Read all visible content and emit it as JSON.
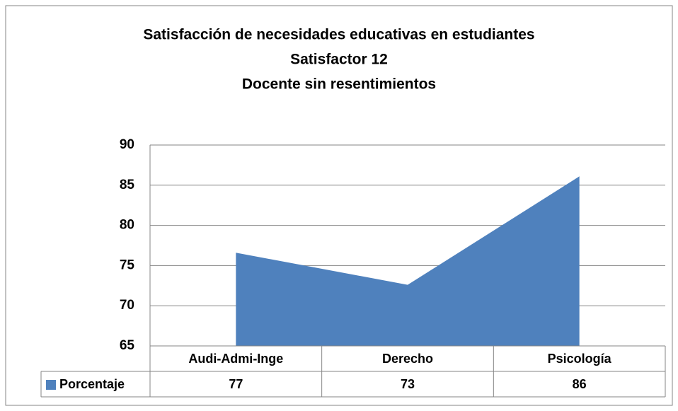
{
  "chart_data": {
    "type": "area",
    "title": [
      "Satisfacción de necesidades  educativas en estudiantes",
      "Satisfactor 12",
      "Docente sin resentimientos"
    ],
    "categories": [
      "Audi-Admi-Inge",
      "Derecho",
      "Psicología"
    ],
    "series": [
      {
        "name": "Porcentaje",
        "color": "#4f81bd",
        "values": [
          76.6,
          72.6,
          86.1
        ],
        "value_labels": [
          "77",
          "73",
          "86"
        ]
      }
    ],
    "ylim": [
      65,
      90
    ],
    "yticks": [
      65,
      70,
      75,
      80,
      85,
      90
    ],
    "grid": true
  }
}
